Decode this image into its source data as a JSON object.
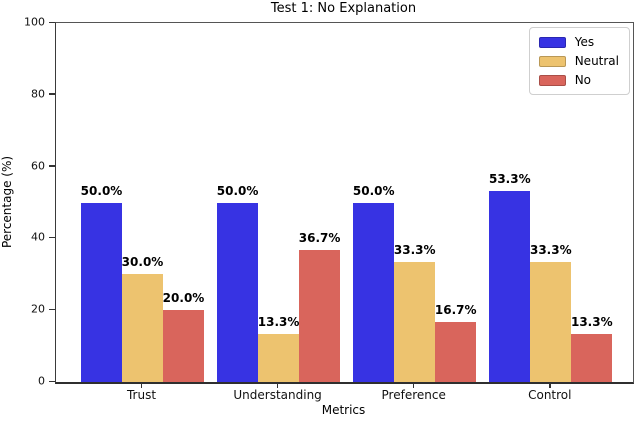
{
  "figure": {
    "title": "Test 1: No Explanation",
    "xlabel": "Metrics",
    "ylabel": "Percentage (%)"
  },
  "chart_data": {
    "type": "bar",
    "title": "Test 1: No Explanation",
    "xlabel": "Metrics",
    "ylabel": "Percentage (%)",
    "ylim": [
      0,
      100
    ],
    "yticks": [
      0,
      20,
      40,
      60,
      80,
      100
    ],
    "grid": false,
    "legend_position": "upper right",
    "categories": [
      "Trust",
      "Understanding",
      "Preference",
      "Control"
    ],
    "series": [
      {
        "name": "Yes",
        "color": "#3733E3",
        "values": [
          50.0,
          50.0,
          50.0,
          53.3
        ],
        "labels": [
          "50.0%",
          "50.0%",
          "50.0%",
          "53.3%"
        ]
      },
      {
        "name": "Neutral",
        "color": "#EDC36F",
        "values": [
          30.0,
          13.3,
          33.3,
          33.3
        ],
        "labels": [
          "30.0%",
          "13.3%",
          "33.3%",
          "33.3%"
        ]
      },
      {
        "name": "No",
        "color": "#D9655C",
        "values": [
          20.0,
          36.7,
          16.7,
          13.3
        ],
        "labels": [
          "20.0%",
          "36.7%",
          "16.7%",
          "13.3%"
        ]
      }
    ]
  }
}
